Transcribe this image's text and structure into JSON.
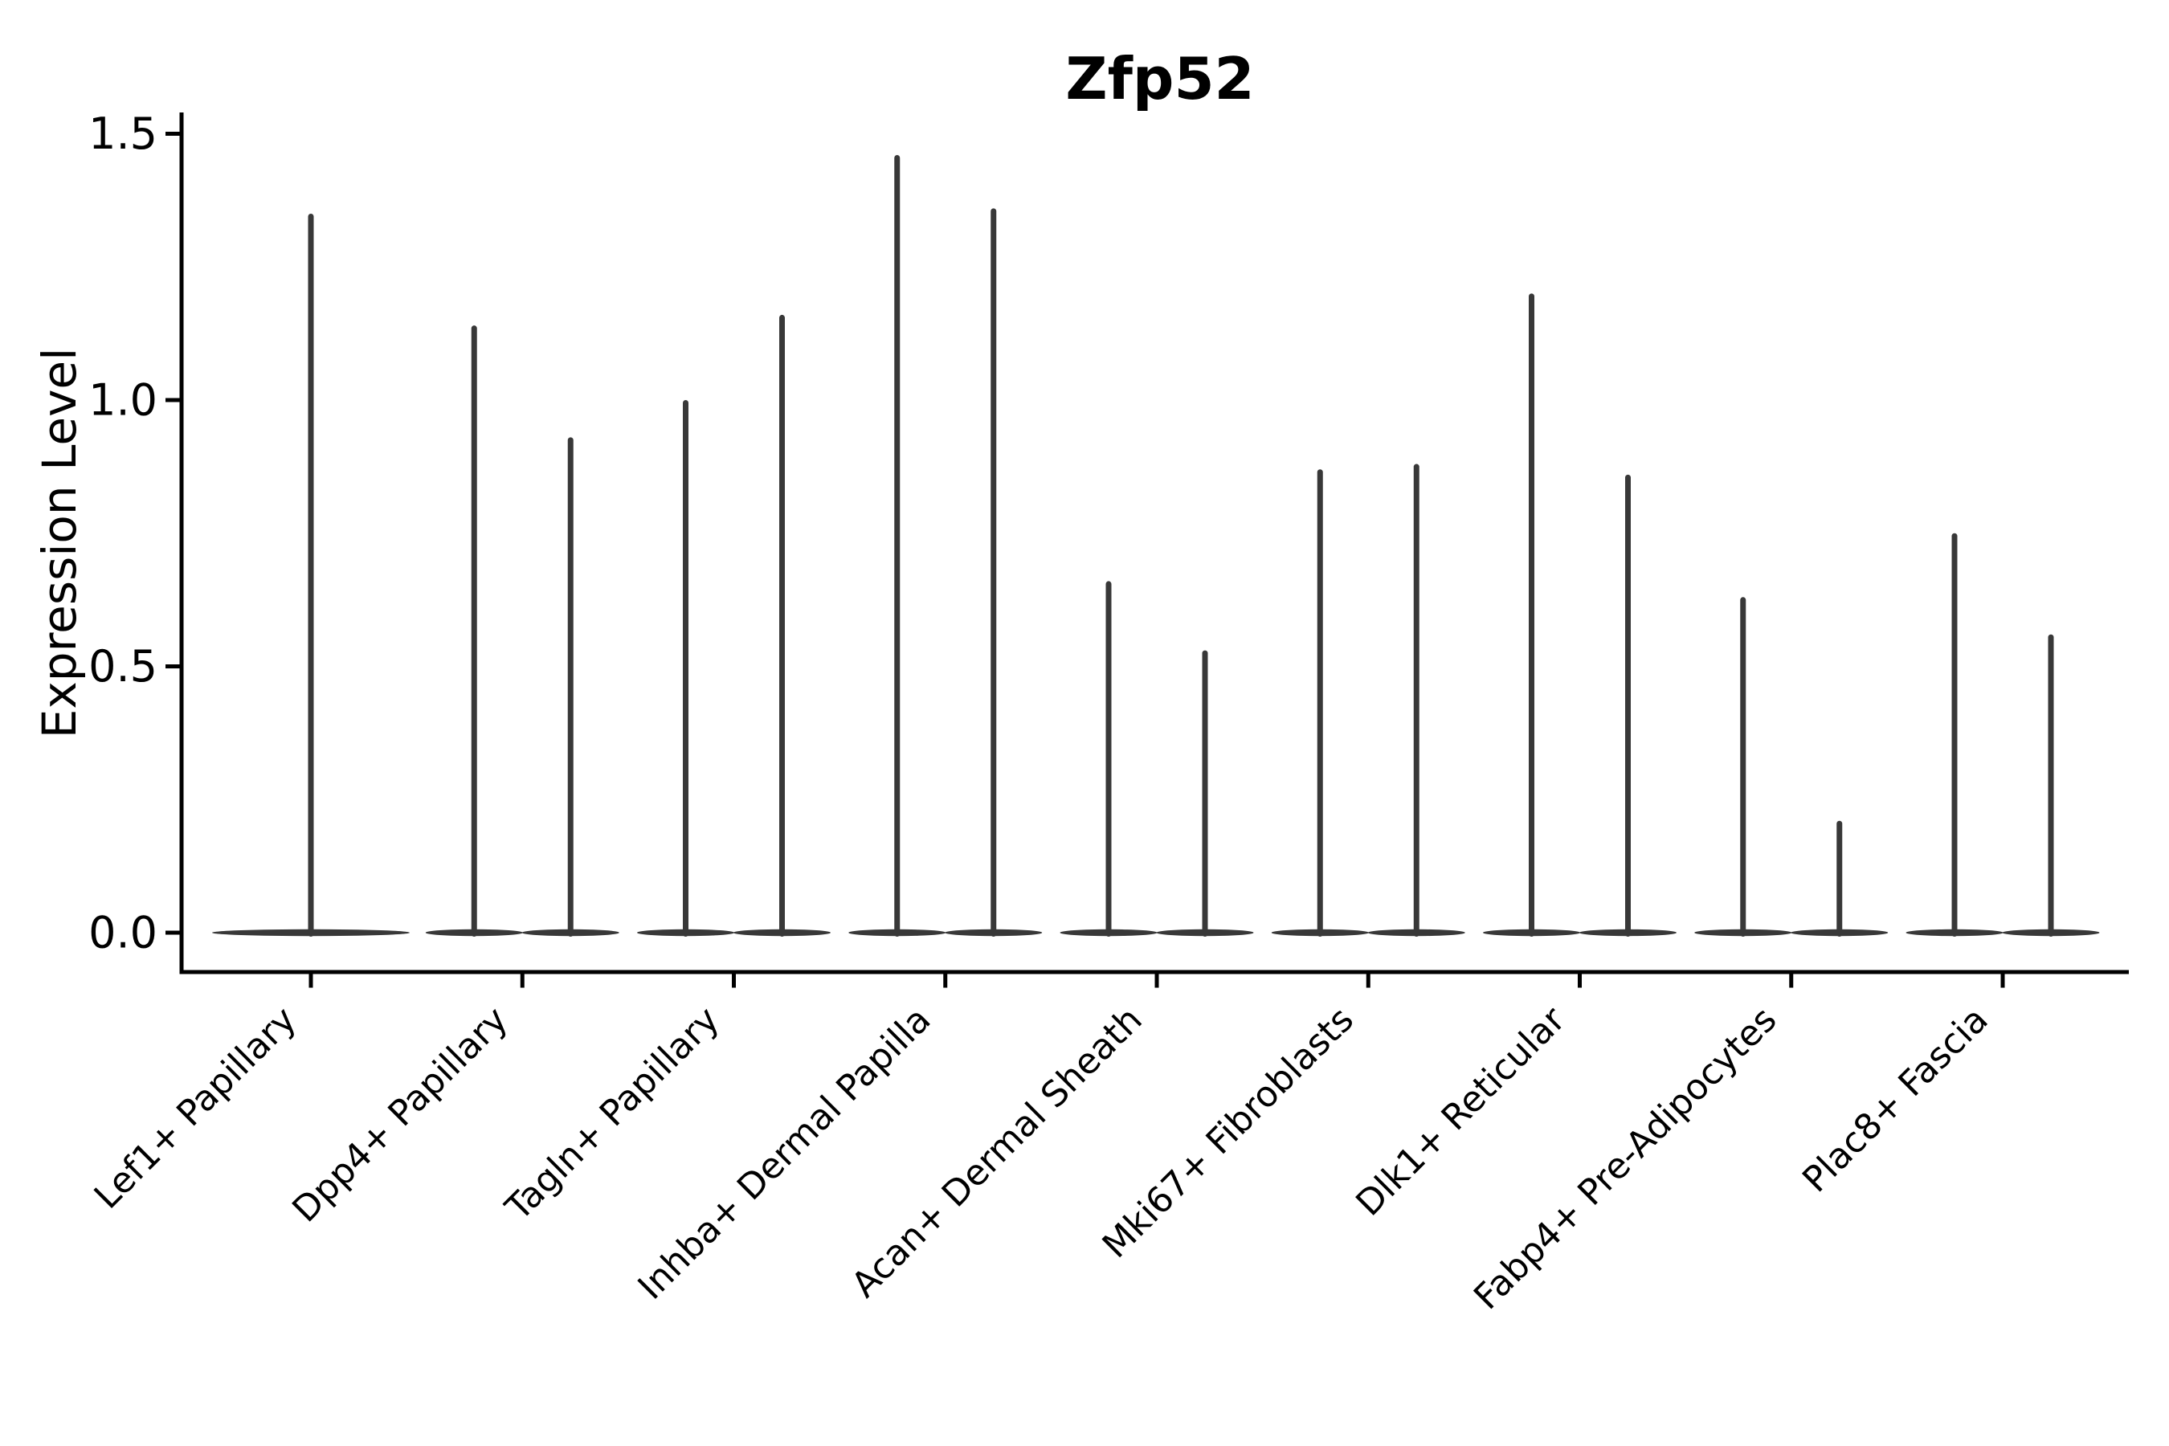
{
  "figure": {
    "title": "Zfp52",
    "y_axis_label": "Expression Level"
  },
  "chart_data": {
    "type": "violin",
    "title": "Zfp52",
    "xlabel": "",
    "ylabel": "Expression Level",
    "ylim": [
      -0.07,
      1.52
    ],
    "yticks": [
      0.0,
      0.5,
      1.0,
      1.5
    ],
    "ytick_labels": [
      "0.0",
      "0.5",
      "1.0",
      "1.5"
    ],
    "grid": false,
    "legend_position": "none",
    "orientation": "vertical",
    "x_tick_rotation_deg": 45,
    "description": "Single-gene expression violin plot. Every violin is collapsed onto a thin horizontal base at expression 0 with a single narrow spike rising to the maximum expression value. The first category shows one full-width violin; all other categories show two side-by-side half-width violins.",
    "categories": [
      {
        "label": "Lef1+ Papillary",
        "violin_peaks": [
          1.35
        ]
      },
      {
        "label": "Dpp4+ Papillary",
        "violin_peaks": [
          1.14,
          0.93
        ]
      },
      {
        "label": "Tagln+ Papillary",
        "violin_peaks": [
          1.0,
          1.16
        ]
      },
      {
        "label": "Inhba+ Dermal Papilla",
        "violin_peaks": [
          1.46,
          1.36
        ]
      },
      {
        "label": "Acan+ Dermal Sheath",
        "violin_peaks": [
          0.66,
          0.53
        ]
      },
      {
        "label": "Mki67+ Fibroblasts",
        "violin_peaks": [
          0.87,
          0.88
        ]
      },
      {
        "label": "Dlk1+ Reticular",
        "violin_peaks": [
          1.2,
          0.86
        ]
      },
      {
        "label": "Fabp4+ Pre-Adipocytes",
        "violin_peaks": [
          0.63,
          0.21
        ]
      },
      {
        "label": "Plac8+ Fascia",
        "violin_peaks": [
          0.75,
          0.56
        ]
      }
    ],
    "colors": {
      "violin": "#383838",
      "axis": "#000000",
      "text": "#000000",
      "background": "#ffffff"
    }
  }
}
